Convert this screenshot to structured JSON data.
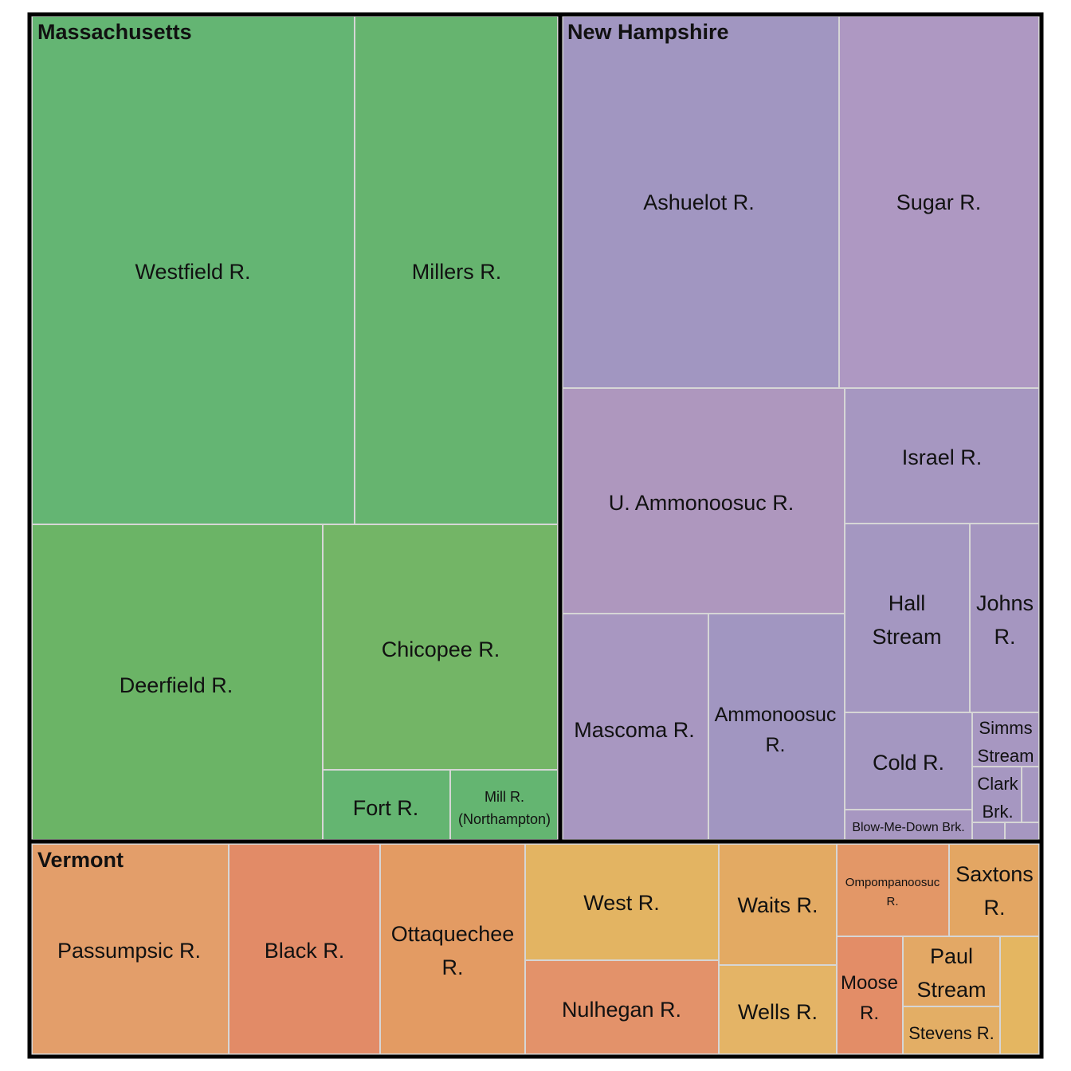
{
  "chart_data": {
    "type": "treemap",
    "title": "",
    "groups": [
      {
        "name": "Massachusetts",
        "color": "#66b06e",
        "items": [
          {
            "label": "Westfield R.",
            "color": "#64b573"
          },
          {
            "label": "Millers R.",
            "color": "#66b46f"
          },
          {
            "label": "Deerfield R.",
            "color": "#6bb466"
          },
          {
            "label": "Chicopee R.",
            "color": "#73b566"
          },
          {
            "label": "Fort R.",
            "color": "#64b571"
          },
          {
            "label": "Mill R. (Northampton)",
            "color": "#64b571"
          }
        ]
      },
      {
        "name": "New Hampshire",
        "color": "#a096c2",
        "items": [
          {
            "label": "Ashuelot R.",
            "color": "#a196c1"
          },
          {
            "label": "Sugar R.",
            "color": "#ae98c2"
          },
          {
            "label": "U. Ammonoosuc R.",
            "color": "#ae97be"
          },
          {
            "label": "Israel R.",
            "color": "#a697c1"
          },
          {
            "label": "Hall Stream",
            "color": "#a497c1"
          },
          {
            "label": "Johns R.",
            "color": "#a596c0"
          },
          {
            "label": "Mascoma R.",
            "color": "#a897c1"
          },
          {
            "label": "Ammonoosuc R.",
            "color": "#a196c1"
          },
          {
            "label": "Cold R.",
            "color": "#a497c1"
          },
          {
            "label": "Simms Stream",
            "color": "#a797c1"
          },
          {
            "label": "Clark Brk.",
            "color": "#a697c1"
          },
          {
            "label": "Blow-Me-Down Brk.",
            "color": "#a797c1"
          },
          {
            "label": "",
            "color": "#a697c1"
          },
          {
            "label": "",
            "color": "#a697c1"
          },
          {
            "label": "",
            "color": "#a697c1"
          }
        ]
      },
      {
        "name": "Vermont",
        "color": "#e49b67",
        "items": [
          {
            "label": "Passumpsic R.",
            "color": "#e39e6a"
          },
          {
            "label": "Black R.",
            "color": "#e28b67"
          },
          {
            "label": "Ottaquechee R.",
            "color": "#e39b63"
          },
          {
            "label": "West R.",
            "color": "#e3b462"
          },
          {
            "label": "Nulhegan R.",
            "color": "#e3926a"
          },
          {
            "label": "Waits R.",
            "color": "#e3aa63"
          },
          {
            "label": "Wells R.",
            "color": "#e4b466"
          },
          {
            "label": "Ompompanoosuc R.",
            "color": "#e39767"
          },
          {
            "label": "Saxtons R.",
            "color": "#e3a663"
          },
          {
            "label": "Moose R.",
            "color": "#e38d67"
          },
          {
            "label": "Paul Stream",
            "color": "#e3a865"
          },
          {
            "label": "Stevens R.",
            "color": "#e3ae65"
          },
          {
            "label": "",
            "color": "#e4b661"
          }
        ]
      }
    ]
  }
}
